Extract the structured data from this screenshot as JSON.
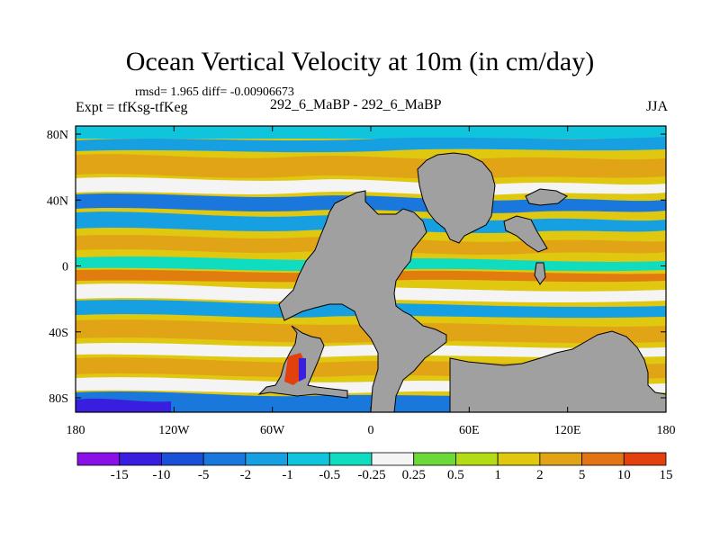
{
  "header": {
    "title": "Ocean Vertical Velocity at 10m (in cm/day)",
    "stats": "rmsd= 1.965 diff= -0.00906673",
    "experiment": "Expt = tfKsg-tfKeg",
    "runs": "292_6_MaBP - 292_6_MaBP",
    "season": "JJA"
  },
  "map": {
    "lon_labels": [
      "180",
      "120W",
      "60W",
      "0",
      "60E",
      "120E",
      "180"
    ],
    "lat_labels": [
      "80N",
      "40N",
      "0",
      "40S",
      "80S"
    ],
    "land_color": "#a0a0a0"
  },
  "colorbar": {
    "labels": [
      "-15",
      "-10",
      "-5",
      "-2",
      "-1",
      "-0.5",
      "-0.25",
      "0.25",
      "0.5",
      "1",
      "2",
      "5",
      "10",
      "15"
    ],
    "colors": [
      "#8a10e8",
      "#3a1ee0",
      "#1a50d8",
      "#1a78dc",
      "#16a0e2",
      "#10c4dc",
      "#10dcc0",
      "#f4f4f4",
      "#6cd83a",
      "#b4dc16",
      "#e0c810",
      "#e0a416",
      "#e27414",
      "#e2400c"
    ]
  }
}
